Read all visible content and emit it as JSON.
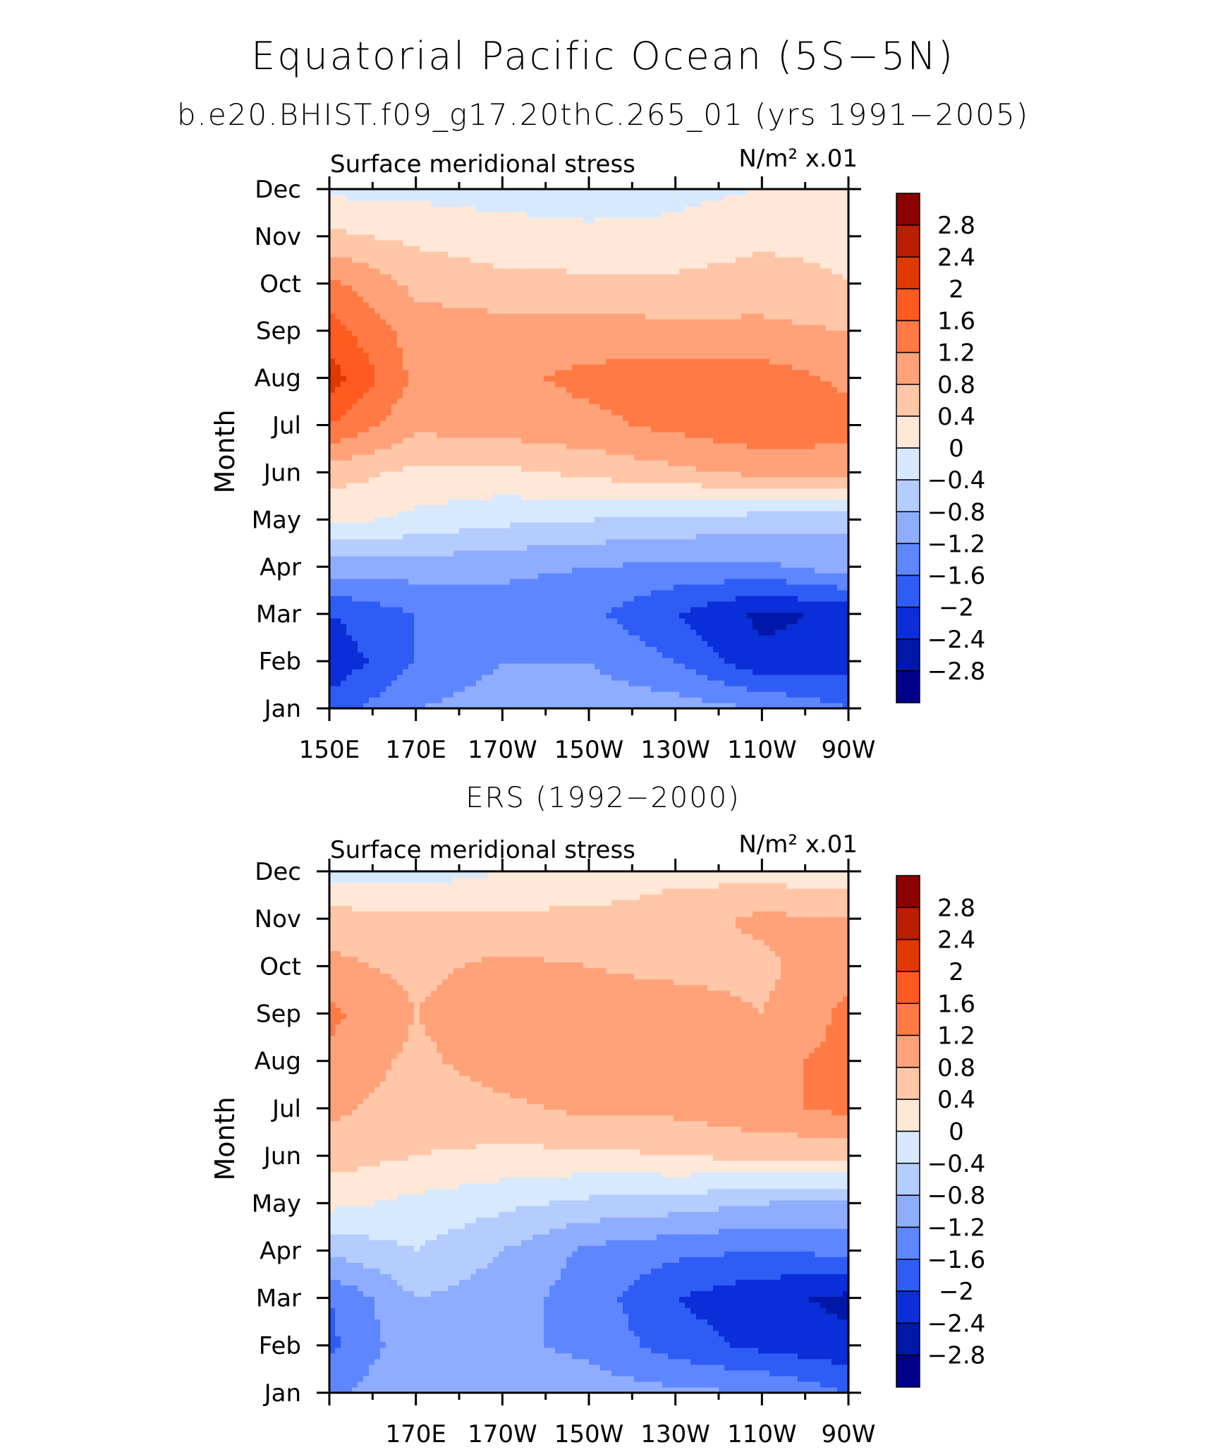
{
  "figure": {
    "title": "Equatorial Pacific Ocean (5S−5N)",
    "subtitle": "b.e20.BHIST.f09_g17.20thC.265_01 (yrs 1991−2005)",
    "panel2_title": "ERS (1992−2000)"
  },
  "colorbar": {
    "labels": [
      "2.8",
      "2.4",
      "2",
      "1.6",
      "1.2",
      "0.8",
      "0.4",
      "0",
      "−0.4",
      "−0.8",
      "−1.2",
      "−1.6",
      "−2",
      "−2.4",
      "−2.8"
    ],
    "levels": [
      2.8,
      2.4,
      2.0,
      1.6,
      1.2,
      0.8,
      0.4,
      0,
      -0.4,
      -0.8,
      -1.2,
      -1.6,
      -2.0,
      -2.4,
      -2.8
    ],
    "colors_top_to_bottom": [
      "#8b0000",
      "#bc1e00",
      "#e03900",
      "#ff5a1f",
      "#ff7a45",
      "#ffa27a",
      "#ffc6a8",
      "#ffe8d8",
      "#d7e9ff",
      "#b5ccff",
      "#8fadff",
      "#5e87ff",
      "#2e5cf5",
      "#0a2fd9",
      "#0018a8",
      "#00008b"
    ]
  },
  "chart_data": [
    {
      "type": "heatmap",
      "panel": "model",
      "left_label": "Surface meridional stress",
      "right_label": "N/m² x.01",
      "ylabel": "Month",
      "x_tick_labels": [
        "150E",
        "170E",
        "170W",
        "150W",
        "130W",
        "110W",
        "90W"
      ],
      "y_tick_labels": [
        "Jan",
        "Feb",
        "Mar",
        "Apr",
        "May",
        "Jun",
        "Jul",
        "Aug",
        "Sep",
        "Oct",
        "Nov",
        "Dec"
      ],
      "x_lon_range": [
        150,
        270
      ],
      "y_month_range": [
        1,
        12
      ],
      "values_note_units": "N/m2 x .01",
      "x": [
        150,
        170,
        190,
        210,
        230,
        250,
        270
      ],
      "y": [
        "Jan",
        "Feb",
        "Mar",
        "Apr",
        "May",
        "Jun",
        "Jul",
        "Aug",
        "Sep",
        "Oct",
        "Nov",
        "Dec"
      ],
      "z": [
        [
          -1.8,
          -1.2,
          -1.0,
          -1.0,
          -1.0,
          -1.2,
          -1.6
        ],
        [
          -2.3,
          -1.6,
          -1.2,
          -1.2,
          -1.6,
          -2.3,
          -2.2
        ],
        [
          -2.0,
          -1.6,
          -1.4,
          -1.5,
          -2.0,
          -2.5,
          -2.3
        ],
        [
          -1.0,
          -1.0,
          -1.1,
          -1.2,
          -1.3,
          -1.3,
          -1.0
        ],
        [
          0.1,
          -0.1,
          -0.3,
          -0.4,
          -0.5,
          -0.6,
          -0.7
        ],
        [
          0.6,
          0.3,
          0.3,
          0.5,
          0.7,
          0.9,
          0.9
        ],
        [
          1.6,
          0.9,
          1.0,
          1.1,
          1.3,
          1.5,
          1.4
        ],
        [
          2.2,
          1.1,
          1.1,
          1.3,
          1.4,
          1.4,
          1.1
        ],
        [
          1.8,
          1.0,
          1.0,
          1.0,
          0.9,
          0.9,
          0.8
        ],
        [
          1.3,
          0.7,
          0.5,
          0.5,
          0.5,
          0.6,
          0.4
        ],
        [
          0.5,
          0.3,
          0.2,
          0.1,
          0.1,
          0.3,
          0.3
        ],
        [
          -0.1,
          -0.1,
          -0.2,
          -0.2,
          -0.1,
          0.0,
          0.0
        ]
      ]
    },
    {
      "type": "heatmap",
      "panel": "observations",
      "left_label": "Surface meridional stress",
      "right_label": "N/m² x.01",
      "ylabel": "Month",
      "x_tick_labels": [
        "170E",
        "170W",
        "150W",
        "130W",
        "110W",
        "90W"
      ],
      "y_tick_labels": [
        "Jan",
        "Feb",
        "Mar",
        "Apr",
        "May",
        "Jun",
        "Jul",
        "Aug",
        "Sep",
        "Oct",
        "Nov",
        "Dec"
      ],
      "x_lon_range": [
        150,
        270
      ],
      "y_month_range": [
        1,
        12
      ],
      "values_note_units": "N/m2 x .01",
      "x": [
        150,
        170,
        190,
        210,
        230,
        250,
        270
      ],
      "y": [
        "Jan",
        "Feb",
        "Mar",
        "Apr",
        "May",
        "Jun",
        "Jul",
        "Aug",
        "Sep",
        "Oct",
        "Nov",
        "Dec"
      ],
      "z": [
        [
          -1.3,
          -0.8,
          -0.9,
          -1.0,
          -1.1,
          -1.2,
          -1.6
        ],
        [
          -1.7,
          -0.9,
          -1.1,
          -1.3,
          -1.8,
          -2.1,
          -2.3
        ],
        [
          -1.6,
          -0.8,
          -1.0,
          -1.4,
          -2.0,
          -2.3,
          -2.5
        ],
        [
          -0.7,
          -0.4,
          -0.8,
          -1.3,
          -1.5,
          -1.6,
          -1.5
        ],
        [
          0.1,
          -0.1,
          -0.3,
          -0.5,
          -0.6,
          -0.8,
          -0.9
        ],
        [
          0.6,
          0.4,
          0.3,
          0.3,
          0.4,
          0.5,
          0.5
        ],
        [
          0.9,
          0.6,
          0.7,
          0.9,
          0.9,
          1.1,
          1.3
        ],
        [
          1.1,
          0.7,
          1.0,
          1.0,
          1.0,
          1.1,
          1.3
        ],
        [
          1.3,
          0.8,
          1.1,
          1.0,
          1.0,
          0.8,
          1.3
        ],
        [
          0.9,
          0.7,
          0.9,
          0.8,
          0.7,
          0.7,
          1.1
        ],
        [
          0.6,
          0.5,
          0.5,
          0.5,
          0.6,
          0.9,
          0.8
        ],
        [
          -0.2,
          -0.2,
          0.0,
          0.1,
          0.3,
          0.2,
          0.2
        ]
      ]
    }
  ]
}
